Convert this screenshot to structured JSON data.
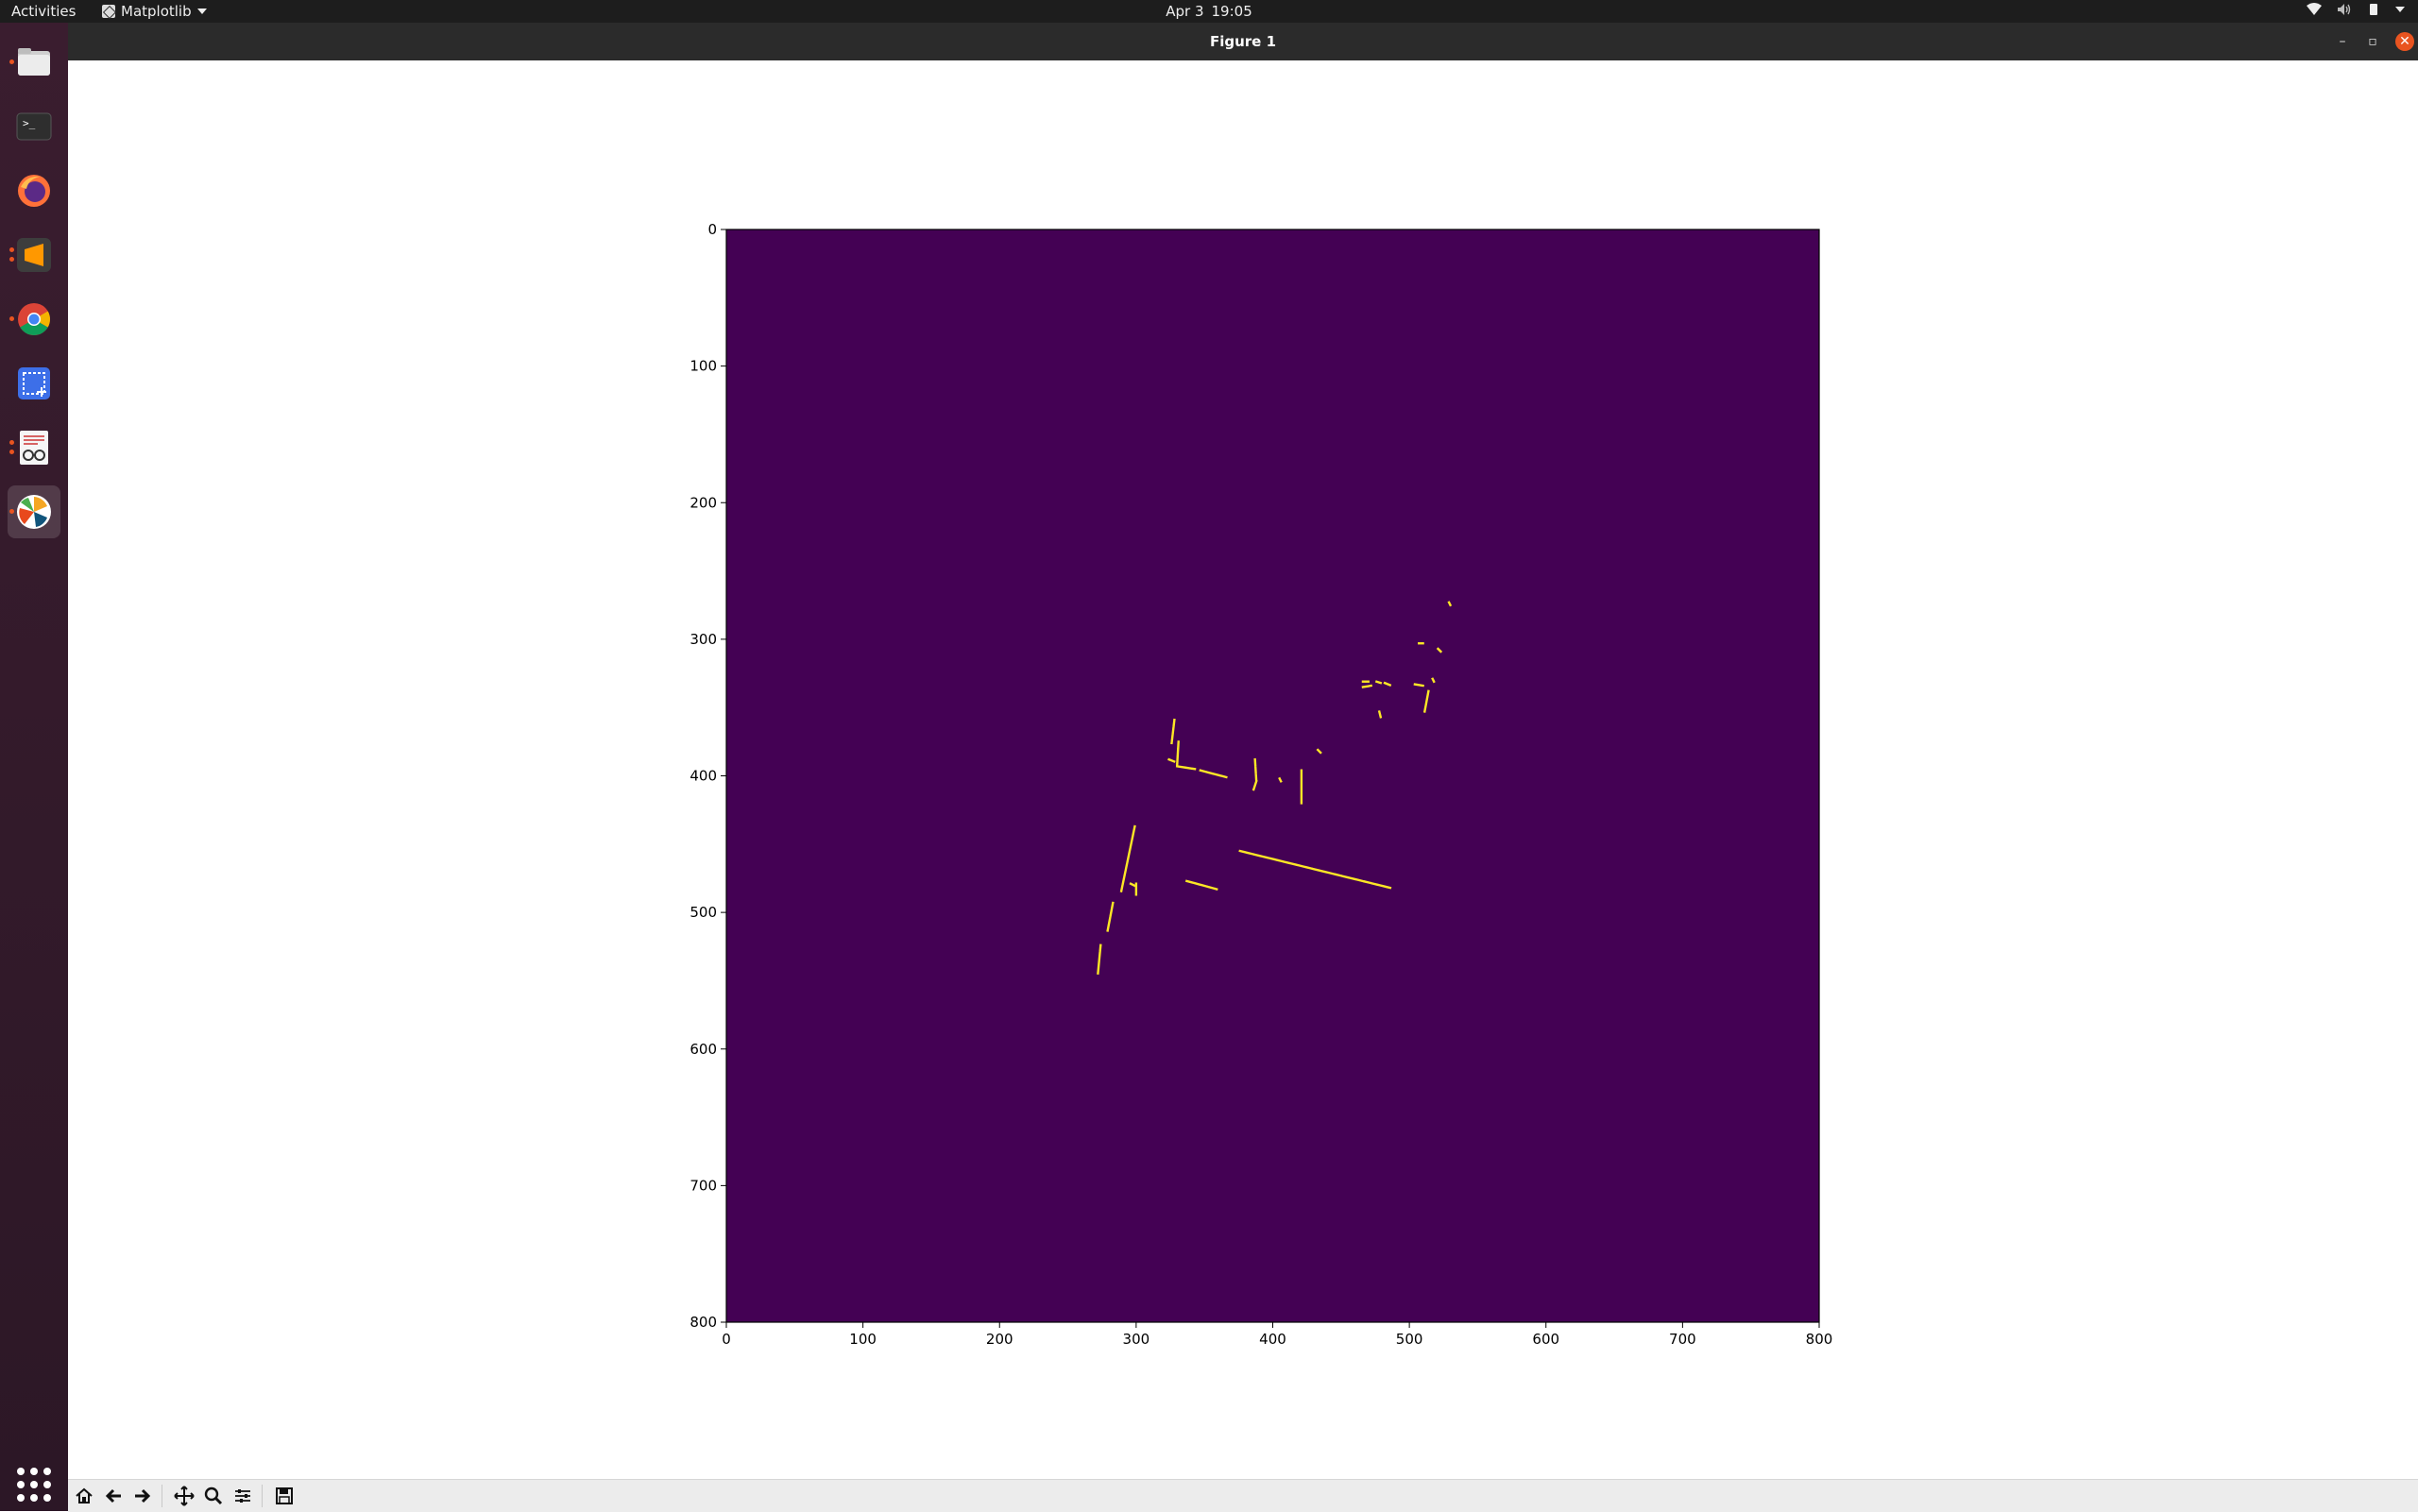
{
  "topbar": {
    "activities": "Activities",
    "app_name": "Matplotlib",
    "date": "Apr 3",
    "time": "19:05"
  },
  "dock": {
    "items": [
      {
        "name": "files",
        "running": true
      },
      {
        "name": "terminal",
        "running": false
      },
      {
        "name": "firefox",
        "running": false
      },
      {
        "name": "sublime-text",
        "running": true
      },
      {
        "name": "chrome",
        "running": true
      },
      {
        "name": "screenshot",
        "running": false
      },
      {
        "name": "document-viewer",
        "running": true
      },
      {
        "name": "matplotlib",
        "running": true
      }
    ]
  },
  "window": {
    "title": "Figure 1",
    "minimize": "–",
    "maximize": "▫",
    "close": "✕"
  },
  "toolbar": {
    "buttons": [
      "home-icon",
      "back-arrow-icon",
      "forward-arrow-icon",
      "pan-icon",
      "zoom-icon",
      "configure-subplots-icon",
      "save-icon"
    ]
  },
  "chart_data": {
    "type": "heatmap",
    "title": "",
    "xlabel": "",
    "ylabel": "",
    "xlim": [
      0,
      800
    ],
    "ylim": [
      800,
      0
    ],
    "xticks": [
      0,
      100,
      200,
      300,
      400,
      500,
      600,
      700,
      800
    ],
    "yticks": [
      0,
      100,
      200,
      300,
      400,
      500,
      600,
      700,
      800
    ],
    "colormap": "viridis",
    "background_color": "#440154",
    "foreground_color": "#fde725",
    "segments": [
      {
        "from": [
          376,
          455
        ],
        "to": [
          486,
          482
        ]
      },
      {
        "from": [
          299,
          437
        ],
        "to": [
          289,
          485
        ]
      },
      {
        "from": [
          283,
          493
        ],
        "to": [
          279,
          514
        ]
      },
      {
        "from": [
          274,
          524
        ],
        "to": [
          272,
          545
        ]
      },
      {
        "from": [
          337,
          477
        ],
        "to": [
          359,
          483
        ]
      },
      {
        "from": [
          296,
          479
        ],
        "to": [
          300,
          481
        ]
      },
      {
        "from": [
          300,
          479
        ],
        "to": [
          300,
          487
        ]
      },
      {
        "from": [
          328,
          359
        ],
        "to": [
          326,
          376
        ]
      },
      {
        "from": [
          331,
          375
        ],
        "to": [
          330,
          392
        ]
      },
      {
        "from": [
          324,
          388
        ],
        "to": [
          329,
          390
        ]
      },
      {
        "from": [
          330,
          393
        ],
        "to": [
          343,
          395
        ]
      },
      {
        "from": [
          347,
          396
        ],
        "to": [
          366,
          401
        ]
      },
      {
        "from": [
          387,
          388
        ],
        "to": [
          388,
          404
        ]
      },
      {
        "from": [
          388,
          404
        ],
        "to": [
          386,
          410
        ]
      },
      {
        "from": [
          421,
          396
        ],
        "to": [
          421,
          420
        ]
      },
      {
        "from": [
          433,
          381
        ],
        "to": [
          435,
          383
        ]
      },
      {
        "from": [
          405,
          402
        ],
        "to": [
          406,
          404
        ]
      },
      {
        "from": [
          466,
          331
        ],
        "to": [
          470,
          331
        ]
      },
      {
        "from": [
          466,
          335
        ],
        "to": [
          472,
          334
        ]
      },
      {
        "from": [
          476,
          331
        ],
        "to": [
          479,
          332
        ]
      },
      {
        "from": [
          482,
          332
        ],
        "to": [
          487,
          334
        ]
      },
      {
        "from": [
          478,
          353
        ],
        "to": [
          479,
          357
        ]
      },
      {
        "from": [
          504,
          333
        ],
        "to": [
          510,
          334
        ]
      },
      {
        "from": [
          514,
          338
        ],
        "to": [
          511,
          354
        ]
      },
      {
        "from": [
          507,
          303
        ],
        "to": [
          510,
          303
        ]
      },
      {
        "from": [
          517,
          329
        ],
        "to": [
          518,
          331
        ]
      },
      {
        "from": [
          521,
          307
        ],
        "to": [
          523,
          309
        ]
      },
      {
        "from": [
          529,
          273
        ],
        "to": [
          530,
          275
        ]
      }
    ]
  }
}
